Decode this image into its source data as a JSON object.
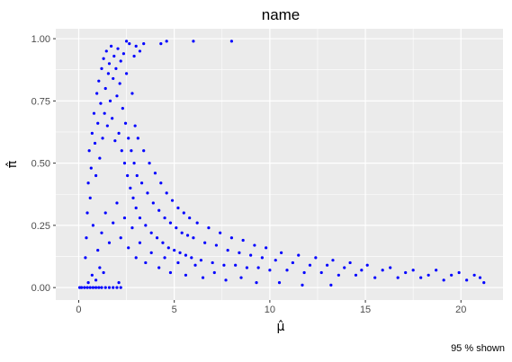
{
  "chart_data": {
    "type": "scatter",
    "title": "name",
    "xlabel": "μ̂",
    "ylabel": "π̂",
    "caption": "95 % shown",
    "xlim": [
      -1.2,
      22.2
    ],
    "ylim": [
      -0.05,
      1.04
    ],
    "xticks": [
      0,
      5,
      10,
      15,
      20
    ],
    "xtick_labels": [
      "0",
      "5",
      "10",
      "15",
      "20"
    ],
    "yticks": [
      0,
      0.25,
      0.5,
      0.75,
      1.0
    ],
    "ytick_labels": [
      "0.00",
      "0.25",
      "0.50",
      "0.75",
      "1.00"
    ],
    "grid": true,
    "legend": "none",
    "colors": {
      "points": "#0000ff",
      "panel_background": "#ebebeb",
      "grid": "#ffffff"
    },
    "series": [
      {
        "points": [
          [
            0.05,
            0.0
          ],
          [
            0.15,
            0.0
          ],
          [
            0.3,
            0.0
          ],
          [
            0.45,
            0.0
          ],
          [
            0.6,
            0.0
          ],
          [
            0.75,
            0.0
          ],
          [
            0.9,
            0.0
          ],
          [
            1.05,
            0.0
          ],
          [
            1.2,
            0.0
          ],
          [
            1.4,
            0.0
          ],
          [
            1.6,
            0.0
          ],
          [
            1.8,
            0.0
          ],
          [
            2.0,
            0.0
          ],
          [
            2.2,
            0.0
          ],
          [
            0.5,
            0.02
          ],
          [
            0.7,
            0.05
          ],
          [
            0.9,
            0.03
          ],
          [
            1.1,
            0.08
          ],
          [
            1.3,
            0.06
          ],
          [
            2.1,
            0.02
          ],
          [
            0.35,
            0.12
          ],
          [
            0.4,
            0.2
          ],
          [
            0.45,
            0.3
          ],
          [
            0.5,
            0.42
          ],
          [
            0.55,
            0.55
          ],
          [
            0.6,
            0.36
          ],
          [
            0.65,
            0.48
          ],
          [
            0.7,
            0.62
          ],
          [
            0.75,
            0.25
          ],
          [
            0.8,
            0.7
          ],
          [
            0.85,
            0.58
          ],
          [
            0.9,
            0.45
          ],
          [
            0.95,
            0.78
          ],
          [
            1.0,
            0.66
          ],
          [
            1.05,
            0.83
          ],
          [
            1.1,
            0.52
          ],
          [
            1.15,
            0.74
          ],
          [
            1.2,
            0.88
          ],
          [
            1.25,
            0.6
          ],
          [
            1.3,
            0.92
          ],
          [
            1.35,
            0.7
          ],
          [
            1.4,
            0.8
          ],
          [
            1.45,
            0.95
          ],
          [
            1.5,
            0.65
          ],
          [
            1.55,
            0.86
          ],
          [
            1.6,
            0.9
          ],
          [
            1.65,
            0.75
          ],
          [
            1.7,
            0.97
          ],
          [
            1.75,
            0.68
          ],
          [
            1.8,
            0.84
          ],
          [
            1.85,
            0.93
          ],
          [
            1.9,
            0.59
          ],
          [
            1.95,
            0.88
          ],
          [
            2.0,
            0.77
          ],
          [
            2.05,
            0.96
          ],
          [
            2.1,
            0.62
          ],
          [
            2.15,
            0.82
          ],
          [
            2.2,
            0.91
          ],
          [
            2.25,
            0.55
          ],
          [
            2.3,
            0.72
          ],
          [
            2.35,
            0.94
          ],
          [
            2.4,
            0.5
          ],
          [
            2.45,
            0.66
          ],
          [
            2.5,
            0.86
          ],
          [
            2.55,
            0.45
          ],
          [
            2.6,
            0.6
          ],
          [
            2.65,
            0.98
          ],
          [
            2.7,
            0.4
          ],
          [
            2.75,
            0.55
          ],
          [
            2.8,
            0.78
          ],
          [
            2.85,
            0.36
          ],
          [
            2.9,
            0.5
          ],
          [
            2.95,
            0.65
          ],
          [
            3.0,
            0.32
          ],
          [
            3.05,
            0.45
          ],
          [
            3.1,
            0.6
          ],
          [
            3.2,
            0.28
          ],
          [
            3.3,
            0.42
          ],
          [
            3.4,
            0.55
          ],
          [
            3.5,
            0.25
          ],
          [
            3.6,
            0.38
          ],
          [
            3.7,
            0.5
          ],
          [
            3.8,
            0.22
          ],
          [
            3.9,
            0.34
          ],
          [
            4.0,
            0.46
          ],
          [
            4.1,
            0.2
          ],
          [
            4.2,
            0.31
          ],
          [
            4.3,
            0.42
          ],
          [
            4.4,
            0.18
          ],
          [
            4.5,
            0.28
          ],
          [
            4.6,
            0.38
          ],
          [
            4.7,
            0.16
          ],
          [
            4.8,
            0.26
          ],
          [
            4.9,
            0.35
          ],
          [
            5.0,
            0.15
          ],
          [
            5.1,
            0.24
          ],
          [
            5.2,
            0.32
          ],
          [
            5.3,
            0.14
          ],
          [
            5.4,
            0.22
          ],
          [
            5.5,
            0.3
          ],
          [
            5.6,
            0.13
          ],
          [
            5.7,
            0.21
          ],
          [
            5.8,
            0.28
          ],
          [
            5.9,
            0.12
          ],
          [
            6.0,
            0.2
          ],
          [
            6.2,
            0.26
          ],
          [
            6.4,
            0.11
          ],
          [
            6.6,
            0.18
          ],
          [
            6.8,
            0.24
          ],
          [
            7.0,
            0.1
          ],
          [
            7.2,
            0.17
          ],
          [
            7.4,
            0.22
          ],
          [
            7.6,
            0.09
          ],
          [
            7.8,
            0.15
          ],
          [
            8.0,
            0.2
          ],
          [
            8.2,
            0.09
          ],
          [
            8.4,
            0.14
          ],
          [
            8.6,
            0.19
          ],
          [
            8.8,
            0.08
          ],
          [
            9.0,
            0.13
          ],
          [
            9.2,
            0.17
          ],
          [
            9.4,
            0.08
          ],
          [
            9.6,
            0.12
          ],
          [
            9.8,
            0.16
          ],
          [
            10.0,
            0.07
          ],
          [
            10.3,
            0.11
          ],
          [
            10.6,
            0.14
          ],
          [
            10.9,
            0.07
          ],
          [
            11.2,
            0.1
          ],
          [
            11.5,
            0.13
          ],
          [
            11.8,
            0.06
          ],
          [
            12.1,
            0.09
          ],
          [
            12.4,
            0.12
          ],
          [
            12.7,
            0.06
          ],
          [
            13.0,
            0.09
          ],
          [
            13.3,
            0.11
          ],
          [
            13.6,
            0.05
          ],
          [
            13.9,
            0.08
          ],
          [
            14.2,
            0.1
          ],
          [
            14.5,
            0.05
          ],
          [
            14.8,
            0.07
          ],
          [
            15.1,
            0.09
          ],
          [
            15.5,
            0.04
          ],
          [
            15.9,
            0.07
          ],
          [
            16.3,
            0.08
          ],
          [
            16.7,
            0.04
          ],
          [
            17.1,
            0.06
          ],
          [
            17.5,
            0.07
          ],
          [
            17.9,
            0.04
          ],
          [
            18.3,
            0.05
          ],
          [
            18.7,
            0.07
          ],
          [
            19.1,
            0.03
          ],
          [
            19.5,
            0.05
          ],
          [
            19.9,
            0.06
          ],
          [
            20.3,
            0.03
          ],
          [
            20.7,
            0.05
          ],
          [
            21.0,
            0.04
          ],
          [
            21.2,
            0.02
          ],
          [
            2.5,
            0.99
          ],
          [
            3.0,
            0.97
          ],
          [
            3.4,
            0.98
          ],
          [
            4.3,
            0.98
          ],
          [
            4.6,
            0.99
          ],
          [
            6.0,
            0.99
          ],
          [
            8.0,
            0.99
          ],
          [
            3.2,
            0.95
          ],
          [
            2.9,
            0.93
          ],
          [
            1.0,
            0.15
          ],
          [
            1.2,
            0.22
          ],
          [
            1.4,
            0.3
          ],
          [
            1.6,
            0.18
          ],
          [
            1.8,
            0.26
          ],
          [
            2.0,
            0.34
          ],
          [
            2.2,
            0.2
          ],
          [
            2.4,
            0.28
          ],
          [
            2.6,
            0.16
          ],
          [
            2.8,
            0.24
          ],
          [
            3.0,
            0.12
          ],
          [
            3.2,
            0.18
          ],
          [
            3.5,
            0.1
          ],
          [
            3.8,
            0.14
          ],
          [
            4.2,
            0.08
          ],
          [
            4.5,
            0.12
          ],
          [
            4.8,
            0.06
          ],
          [
            5.2,
            0.1
          ],
          [
            5.6,
            0.05
          ],
          [
            6.1,
            0.09
          ],
          [
            6.5,
            0.04
          ],
          [
            7.1,
            0.06
          ],
          [
            7.7,
            0.03
          ],
          [
            8.5,
            0.04
          ],
          [
            9.3,
            0.02
          ],
          [
            10.5,
            0.02
          ],
          [
            11.7,
            0.01
          ],
          [
            13.2,
            0.01
          ]
        ]
      }
    ]
  }
}
